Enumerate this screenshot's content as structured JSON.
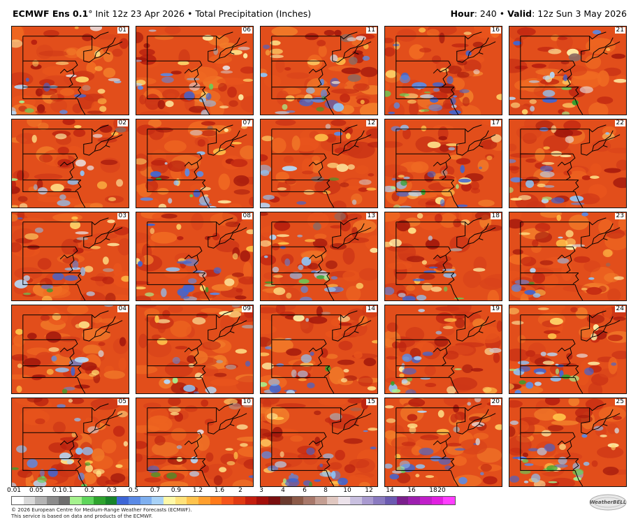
{
  "header": {
    "model": "ECMWF Ens 0.1",
    "degree": "°",
    "init": "Init 12z 23 Apr 2026",
    "sep": "•",
    "product": "Total Precipitation (Inches)",
    "hour_label": "Hour",
    "hour_value": ": 240",
    "valid_label": "Valid",
    "valid_value": ": 12z Sun 3 May 2026"
  },
  "members": [
    {
      "id": "01",
      "seed": 11,
      "blue": 0.18,
      "gray": 0.1,
      "green": 0.05
    },
    {
      "id": "06",
      "seed": 62,
      "blue": 0.22,
      "gray": 0.14,
      "green": 0.04
    },
    {
      "id": "11",
      "seed": 113,
      "blue": 0.25,
      "gray": 0.2,
      "green": 0.1
    },
    {
      "id": "16",
      "seed": 164,
      "blue": 0.35,
      "gray": 0.02,
      "green": 0.12
    },
    {
      "id": "21",
      "seed": 215,
      "blue": 0.2,
      "gray": 0.05,
      "green": 0.1
    },
    {
      "id": "02",
      "seed": 26,
      "blue": 0.12,
      "gray": 0.12,
      "green": 0.02
    },
    {
      "id": "07",
      "seed": 77,
      "blue": 0.25,
      "gray": 0.06,
      "green": 0.05
    },
    {
      "id": "12",
      "seed": 128,
      "blue": 0.14,
      "gray": 0.08,
      "green": 0.03
    },
    {
      "id": "17",
      "seed": 179,
      "blue": 0.3,
      "gray": 0.04,
      "green": 0.18
    },
    {
      "id": "22",
      "seed": 230,
      "blue": 0.22,
      "gray": 0.03,
      "green": 0.08
    },
    {
      "id": "03",
      "seed": 35,
      "blue": 0.22,
      "gray": 0.08,
      "green": 0.06
    },
    {
      "id": "08",
      "seed": 86,
      "blue": 0.28,
      "gray": 0.04,
      "green": 0.06
    },
    {
      "id": "13",
      "seed": 137,
      "blue": 0.3,
      "gray": 0.05,
      "green": 0.15
    },
    {
      "id": "18",
      "seed": 188,
      "blue": 0.2,
      "gray": 0.03,
      "green": 0.05
    },
    {
      "id": "23",
      "seed": 239,
      "blue": 0.18,
      "gray": 0.07,
      "green": 0.03
    },
    {
      "id": "04",
      "seed": 48,
      "blue": 0.15,
      "gray": 0.02,
      "green": 0.03
    },
    {
      "id": "09",
      "seed": 99,
      "blue": 0.12,
      "gray": 0.12,
      "green": 0.03
    },
    {
      "id": "14",
      "seed": 150,
      "blue": 0.28,
      "gray": 0.04,
      "green": 0.06
    },
    {
      "id": "19",
      "seed": 201,
      "blue": 0.25,
      "gray": 0.03,
      "green": 0.14
    },
    {
      "id": "24",
      "seed": 252,
      "blue": 0.3,
      "gray": 0.02,
      "green": 0.18
    },
    {
      "id": "05",
      "seed": 57,
      "blue": 0.25,
      "gray": 0.04,
      "green": 0.16
    },
    {
      "id": "10",
      "seed": 108,
      "blue": 0.1,
      "gray": 0.08,
      "green": 0.05
    },
    {
      "id": "15",
      "seed": 159,
      "blue": 0.35,
      "gray": 0.05,
      "green": 0.05
    },
    {
      "id": "20",
      "seed": 210,
      "blue": 0.3,
      "gray": 0.12,
      "green": 0.06
    },
    {
      "id": "25",
      "seed": 261,
      "blue": 0.32,
      "gray": 0.03,
      "green": 0.22
    }
  ],
  "colorbar": {
    "labels": [
      "0.01",
      "0.05",
      "0.1",
      "0.1",
      "0.2",
      "0.3",
      "0.5",
      "0.7",
      "0.9",
      "1.2",
      "1.6",
      "2",
      "3",
      "4",
      "6",
      "8",
      "10",
      "12",
      "14",
      "16",
      "18",
      "20"
    ],
    "colors": [
      "#ffffff",
      "#d9d9d9",
      "#b4b4b4",
      "#8c8c8c",
      "#6e6e6e",
      "#a6f28f",
      "#5fd55c",
      "#2ea32e",
      "#17842a",
      "#3d66d6",
      "#5a8ae6",
      "#7fb0f0",
      "#a8d2f7",
      "#fff9a8",
      "#ffe27a",
      "#ffc34d",
      "#ff9f2e",
      "#ff7a1a",
      "#f5541a",
      "#e03a12",
      "#c41e0e",
      "#a30f0a",
      "#7a0f0f",
      "#6b3a2e",
      "#8c5a48",
      "#a8786a",
      "#c49e92",
      "#e0c7c0",
      "#ece2ea",
      "#c9c0e0",
      "#a99ad0",
      "#8a7ac0",
      "#6b5ab0",
      "#7a1f8c",
      "#9c1fae",
      "#c01fc9",
      "#e01fe0",
      "#ff3dff"
    ]
  },
  "footer": {
    "line1": "© 2026 European Centre for Medium-Range Weather Forecasts (ECMWF).",
    "line2": "This service is based on data and products of the ECMWF."
  },
  "logo": {
    "text": "WeatherBELL"
  }
}
